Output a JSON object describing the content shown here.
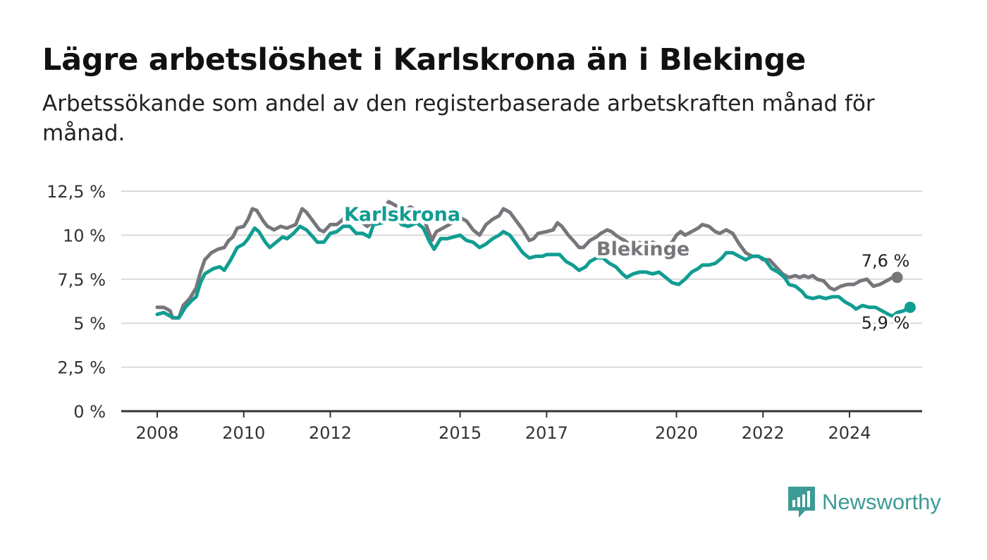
{
  "header": {
    "title": "Lägre arbetslöshet i Karlskrona än i Blekinge",
    "subtitle": "Arbetssökande som andel av den registerbaserade arbetskraften månad för månad."
  },
  "brand": {
    "name": "Newsworthy",
    "icon": "newsworthy-logo-icon",
    "color": "#3d9b95"
  },
  "chart_data": {
    "type": "line",
    "title": "Lägre arbetslöshet i Karlskrona än i Blekinge",
    "subtitle": "Arbetssökande som andel av den registerbaserade arbetskraften månad för månad.",
    "xlabel": "",
    "ylabel": "",
    "xlim": [
      2008,
      2025.4
    ],
    "ylim": [
      0,
      12.5
    ],
    "y_ticks": [
      0,
      2.5,
      5,
      7.5,
      10,
      12.5
    ],
    "y_tick_labels": [
      "0 %",
      "2,5 %",
      "5 %",
      "7,5 %",
      "10 %",
      "12,5 %"
    ],
    "x_ticks": [
      2008,
      2010,
      2012,
      2015,
      2017,
      2020,
      2022,
      2024
    ],
    "x_tick_labels": [
      "2008",
      "2010",
      "2012",
      "2015",
      "2017",
      "2020",
      "2022",
      "2024"
    ],
    "grid": "horizontal",
    "legend": "none",
    "series": [
      {
        "name": "Blekinge",
        "color": "#77767b",
        "end_label": "7,6 %",
        "points": [
          [
            2008.0,
            5.9
          ],
          [
            2008.15,
            5.9
          ],
          [
            2008.3,
            5.7
          ],
          [
            2008.35,
            5.3
          ],
          [
            2008.5,
            5.3
          ],
          [
            2008.6,
            6.0
          ],
          [
            2008.75,
            6.4
          ],
          [
            2008.9,
            7.0
          ],
          [
            2009.0,
            7.9
          ],
          [
            2009.1,
            8.6
          ],
          [
            2009.25,
            9.0
          ],
          [
            2009.4,
            9.2
          ],
          [
            2009.55,
            9.3
          ],
          [
            2009.65,
            9.7
          ],
          [
            2009.75,
            9.9
          ],
          [
            2009.85,
            10.4
          ],
          [
            2010.0,
            10.5
          ],
          [
            2010.1,
            10.9
          ],
          [
            2010.2,
            11.5
          ],
          [
            2010.3,
            11.4
          ],
          [
            2010.45,
            10.8
          ],
          [
            2010.55,
            10.5
          ],
          [
            2010.7,
            10.3
          ],
          [
            2010.85,
            10.5
          ],
          [
            2011.0,
            10.4
          ],
          [
            2011.2,
            10.6
          ],
          [
            2011.35,
            11.5
          ],
          [
            2011.45,
            11.3
          ],
          [
            2011.6,
            10.8
          ],
          [
            2011.75,
            10.3
          ],
          [
            2011.85,
            10.2
          ],
          [
            2012.0,
            10.6
          ],
          [
            2012.15,
            10.6
          ],
          [
            2012.3,
            10.9
          ],
          [
            2012.4,
            11.3
          ],
          [
            2012.55,
            11.3
          ],
          [
            2012.7,
            10.8
          ],
          [
            2012.85,
            10.5
          ],
          [
            2013.0,
            10.8
          ],
          [
            2013.15,
            11.2
          ],
          [
            2013.35,
            11.9
          ],
          [
            2013.5,
            11.7
          ],
          [
            2013.65,
            11.3
          ],
          [
            2013.85,
            11.6
          ],
          [
            2014.0,
            11.4
          ],
          [
            2014.15,
            11.0
          ],
          [
            2014.35,
            9.7
          ],
          [
            2014.45,
            10.2
          ],
          [
            2014.6,
            10.4
          ],
          [
            2014.75,
            10.6
          ],
          [
            2015.0,
            11.0
          ],
          [
            2015.15,
            10.8
          ],
          [
            2015.3,
            10.3
          ],
          [
            2015.45,
            10.0
          ],
          [
            2015.6,
            10.6
          ],
          [
            2015.75,
            10.9
          ],
          [
            2015.9,
            11.1
          ],
          [
            2016.0,
            11.5
          ],
          [
            2016.15,
            11.3
          ],
          [
            2016.3,
            10.8
          ],
          [
            2016.45,
            10.3
          ],
          [
            2016.6,
            9.7
          ],
          [
            2016.7,
            9.8
          ],
          [
            2016.8,
            10.1
          ],
          [
            2017.0,
            10.2
          ],
          [
            2017.15,
            10.3
          ],
          [
            2017.25,
            10.7
          ],
          [
            2017.35,
            10.5
          ],
          [
            2017.5,
            10.0
          ],
          [
            2017.65,
            9.6
          ],
          [
            2017.75,
            9.3
          ],
          [
            2017.85,
            9.3
          ],
          [
            2018.0,
            9.7
          ],
          [
            2018.15,
            9.9
          ],
          [
            2018.25,
            10.1
          ],
          [
            2018.4,
            10.3
          ],
          [
            2018.5,
            10.2
          ],
          [
            2018.65,
            9.9
          ],
          [
            2018.8,
            9.7
          ],
          [
            2018.95,
            9.4
          ],
          [
            2019.1,
            9.6
          ],
          [
            2019.3,
            9.5
          ],
          [
            2019.45,
            9.6
          ],
          [
            2019.6,
            9.4
          ],
          [
            2019.75,
            9.4
          ],
          [
            2019.9,
            9.6
          ],
          [
            2020.0,
            10.0
          ],
          [
            2020.1,
            10.2
          ],
          [
            2020.2,
            10.0
          ],
          [
            2020.35,
            10.2
          ],
          [
            2020.5,
            10.4
          ],
          [
            2020.6,
            10.6
          ],
          [
            2020.75,
            10.5
          ],
          [
            2020.9,
            10.2
          ],
          [
            2021.0,
            10.1
          ],
          [
            2021.15,
            10.3
          ],
          [
            2021.3,
            10.1
          ],
          [
            2021.45,
            9.5
          ],
          [
            2021.6,
            9.0
          ],
          [
            2021.75,
            8.8
          ],
          [
            2021.9,
            8.8
          ],
          [
            2022.0,
            8.6
          ],
          [
            2022.15,
            8.6
          ],
          [
            2022.3,
            8.2
          ],
          [
            2022.45,
            7.8
          ],
          [
            2022.6,
            7.6
          ],
          [
            2022.75,
            7.7
          ],
          [
            2022.85,
            7.6
          ],
          [
            2022.95,
            7.7
          ],
          [
            2023.05,
            7.6
          ],
          [
            2023.15,
            7.7
          ],
          [
            2023.25,
            7.5
          ],
          [
            2023.4,
            7.4
          ],
          [
            2023.55,
            7.0
          ],
          [
            2023.65,
            6.9
          ],
          [
            2023.8,
            7.1
          ],
          [
            2023.95,
            7.2
          ],
          [
            2024.1,
            7.2
          ],
          [
            2024.25,
            7.4
          ],
          [
            2024.4,
            7.5
          ],
          [
            2024.55,
            7.1
          ],
          [
            2024.7,
            7.2
          ],
          [
            2024.85,
            7.4
          ],
          [
            2025.0,
            7.6
          ],
          [
            2025.1,
            7.6
          ]
        ]
      },
      {
        "name": "Karlskrona",
        "color": "#119d92",
        "end_label": "5,9 %",
        "points": [
          [
            2008.0,
            5.5
          ],
          [
            2008.15,
            5.6
          ],
          [
            2008.3,
            5.4
          ],
          [
            2008.4,
            5.3
          ],
          [
            2008.5,
            5.3
          ],
          [
            2008.65,
            5.9
          ],
          [
            2008.8,
            6.3
          ],
          [
            2008.9,
            6.5
          ],
          [
            2009.0,
            7.3
          ],
          [
            2009.1,
            7.8
          ],
          [
            2009.3,
            8.1
          ],
          [
            2009.45,
            8.2
          ],
          [
            2009.55,
            8.0
          ],
          [
            2009.7,
            8.6
          ],
          [
            2009.85,
            9.3
          ],
          [
            2010.0,
            9.5
          ],
          [
            2010.1,
            9.8
          ],
          [
            2010.25,
            10.4
          ],
          [
            2010.35,
            10.2
          ],
          [
            2010.5,
            9.6
          ],
          [
            2010.6,
            9.3
          ],
          [
            2010.75,
            9.6
          ],
          [
            2010.9,
            9.9
          ],
          [
            2011.0,
            9.8
          ],
          [
            2011.15,
            10.1
          ],
          [
            2011.3,
            10.5
          ],
          [
            2011.45,
            10.3
          ],
          [
            2011.6,
            9.9
          ],
          [
            2011.7,
            9.6
          ],
          [
            2011.85,
            9.6
          ],
          [
            2012.0,
            10.1
          ],
          [
            2012.15,
            10.2
          ],
          [
            2012.3,
            10.5
          ],
          [
            2012.45,
            10.5
          ],
          [
            2012.6,
            10.1
          ],
          [
            2012.75,
            10.1
          ],
          [
            2012.9,
            9.9
          ],
          [
            2013.0,
            10.6
          ],
          [
            2013.2,
            10.7
          ],
          [
            2013.35,
            10.9
          ],
          [
            2013.5,
            11.0
          ],
          [
            2013.65,
            10.6
          ],
          [
            2013.8,
            10.5
          ],
          [
            2014.0,
            10.7
          ],
          [
            2014.15,
            10.4
          ],
          [
            2014.3,
            9.6
          ],
          [
            2014.4,
            9.2
          ],
          [
            2014.55,
            9.8
          ],
          [
            2014.7,
            9.8
          ],
          [
            2014.85,
            9.9
          ],
          [
            2015.0,
            10.0
          ],
          [
            2015.15,
            9.7
          ],
          [
            2015.3,
            9.6
          ],
          [
            2015.45,
            9.3
          ],
          [
            2015.6,
            9.5
          ],
          [
            2015.75,
            9.8
          ],
          [
            2015.9,
            10.0
          ],
          [
            2016.0,
            10.2
          ],
          [
            2016.15,
            10.0
          ],
          [
            2016.3,
            9.5
          ],
          [
            2016.45,
            9.0
          ],
          [
            2016.6,
            8.7
          ],
          [
            2016.75,
            8.8
          ],
          [
            2016.9,
            8.8
          ],
          [
            2017.0,
            8.9
          ],
          [
            2017.15,
            8.9
          ],
          [
            2017.3,
            8.9
          ],
          [
            2017.45,
            8.5
          ],
          [
            2017.6,
            8.3
          ],
          [
            2017.75,
            8.0
          ],
          [
            2017.9,
            8.2
          ],
          [
            2018.0,
            8.5
          ],
          [
            2018.15,
            8.7
          ],
          [
            2018.3,
            8.7
          ],
          [
            2018.45,
            8.4
          ],
          [
            2018.6,
            8.2
          ],
          [
            2018.75,
            7.8
          ],
          [
            2018.85,
            7.6
          ],
          [
            2019.0,
            7.8
          ],
          [
            2019.15,
            7.9
          ],
          [
            2019.3,
            7.9
          ],
          [
            2019.45,
            7.8
          ],
          [
            2019.6,
            7.9
          ],
          [
            2019.75,
            7.6
          ],
          [
            2019.9,
            7.3
          ],
          [
            2020.05,
            7.2
          ],
          [
            2020.2,
            7.5
          ],
          [
            2020.35,
            7.9
          ],
          [
            2020.5,
            8.1
          ],
          [
            2020.6,
            8.3
          ],
          [
            2020.75,
            8.3
          ],
          [
            2020.9,
            8.4
          ],
          [
            2021.05,
            8.7
          ],
          [
            2021.15,
            9.0
          ],
          [
            2021.3,
            9.0
          ],
          [
            2021.45,
            8.8
          ],
          [
            2021.6,
            8.6
          ],
          [
            2021.75,
            8.8
          ],
          [
            2021.9,
            8.8
          ],
          [
            2022.05,
            8.6
          ],
          [
            2022.2,
            8.1
          ],
          [
            2022.35,
            7.9
          ],
          [
            2022.5,
            7.6
          ],
          [
            2022.6,
            7.2
          ],
          [
            2022.75,
            7.1
          ],
          [
            2022.9,
            6.8
          ],
          [
            2023.0,
            6.5
          ],
          [
            2023.15,
            6.4
          ],
          [
            2023.3,
            6.5
          ],
          [
            2023.45,
            6.4
          ],
          [
            2023.6,
            6.5
          ],
          [
            2023.75,
            6.5
          ],
          [
            2023.9,
            6.2
          ],
          [
            2024.05,
            6.0
          ],
          [
            2024.15,
            5.8
          ],
          [
            2024.3,
            6.0
          ],
          [
            2024.45,
            5.9
          ],
          [
            2024.6,
            5.9
          ],
          [
            2024.75,
            5.7
          ],
          [
            2024.9,
            5.5
          ],
          [
            2025.0,
            5.4
          ],
          [
            2025.1,
            5.6
          ],
          [
            2025.25,
            5.7
          ],
          [
            2025.4,
            5.9
          ]
        ]
      }
    ]
  }
}
